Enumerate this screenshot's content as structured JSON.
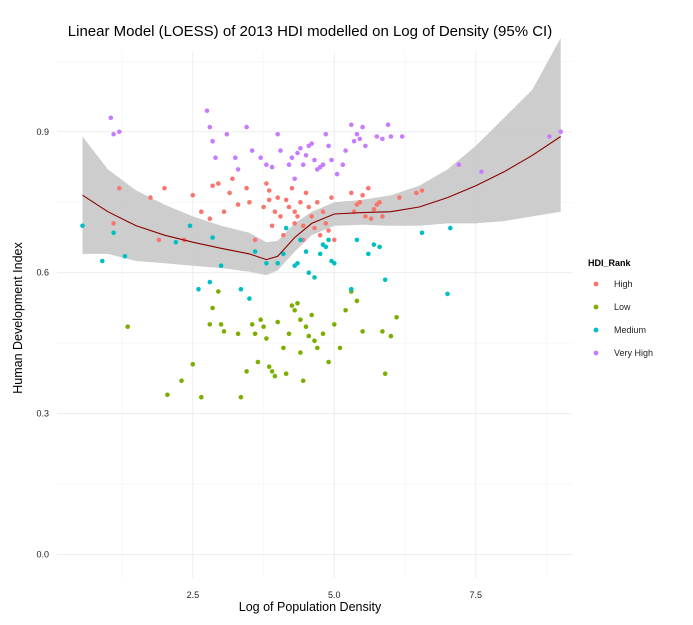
{
  "chart_data": {
    "type": "scatter",
    "title": "Linear Model (LOESS) of 2013 HDI modelled on Log of Density (95% CI)",
    "xlabel": "Log of Population Density",
    "ylabel": "Human Development Index",
    "xlim": [
      0.1,
      9.2
    ],
    "ylim": [
      -0.05,
      1.07
    ],
    "x_ticks": [
      2.5,
      5.0,
      7.5
    ],
    "y_ticks": [
      0.0,
      0.3,
      0.6,
      0.9
    ],
    "x_tick_labels": [
      "2.5",
      "5.0",
      "7.5"
    ],
    "y_tick_labels": [
      "0.0",
      "0.3",
      "0.6",
      "0.9"
    ],
    "grid": true,
    "legend": {
      "title": "HDI_Rank",
      "placement": "right"
    },
    "series": [
      {
        "name": "High",
        "color": "#F8766D",
        "points": [
          [
            1.2,
            0.78
          ],
          [
            1.1,
            0.705
          ],
          [
            1.75,
            0.76
          ],
          [
            1.9,
            0.67
          ],
          [
            2.0,
            0.78
          ],
          [
            2.35,
            0.67
          ],
          [
            2.5,
            0.765
          ],
          [
            2.65,
            0.73
          ],
          [
            2.8,
            0.715
          ],
          [
            2.85,
            0.785
          ],
          [
            2.95,
            0.79
          ],
          [
            3.05,
            0.73
          ],
          [
            3.15,
            0.77
          ],
          [
            3.2,
            0.8
          ],
          [
            3.3,
            0.745
          ],
          [
            3.45,
            0.78
          ],
          [
            3.5,
            0.75
          ],
          [
            3.6,
            0.67
          ],
          [
            3.75,
            0.74
          ],
          [
            3.8,
            0.79
          ],
          [
            3.85,
            0.775
          ],
          [
            3.85,
            0.755
          ],
          [
            3.9,
            0.7
          ],
          [
            3.95,
            0.73
          ],
          [
            4.0,
            0.76
          ],
          [
            4.05,
            0.72
          ],
          [
            4.1,
            0.68
          ],
          [
            4.15,
            0.755
          ],
          [
            4.2,
            0.74
          ],
          [
            4.25,
            0.78
          ],
          [
            4.3,
            0.73
          ],
          [
            4.3,
            0.705
          ],
          [
            4.35,
            0.72
          ],
          [
            4.4,
            0.75
          ],
          [
            4.45,
            0.7
          ],
          [
            4.45,
            0.67
          ],
          [
            4.5,
            0.77
          ],
          [
            4.55,
            0.74
          ],
          [
            4.6,
            0.72
          ],
          [
            4.65,
            0.695
          ],
          [
            4.7,
            0.75
          ],
          [
            4.75,
            0.68
          ],
          [
            4.8,
            0.73
          ],
          [
            4.85,
            0.705
          ],
          [
            4.9,
            0.69
          ],
          [
            4.95,
            0.76
          ],
          [
            5.0,
            0.67
          ],
          [
            5.3,
            0.77
          ],
          [
            5.35,
            0.73
          ],
          [
            5.4,
            0.745
          ],
          [
            5.45,
            0.75
          ],
          [
            5.5,
            0.765
          ],
          [
            5.55,
            0.72
          ],
          [
            5.6,
            0.78
          ],
          [
            5.65,
            0.715
          ],
          [
            5.7,
            0.735
          ],
          [
            5.75,
            0.745
          ],
          [
            5.8,
            0.75
          ],
          [
            5.85,
            0.72
          ],
          [
            6.15,
            0.76
          ],
          [
            6.45,
            0.77
          ],
          [
            6.55,
            0.775
          ]
        ]
      },
      {
        "name": "Low",
        "color": "#7CAE00",
        "points": [
          [
            1.35,
            0.485
          ],
          [
            2.05,
            0.34
          ],
          [
            2.3,
            0.37
          ],
          [
            2.5,
            0.405
          ],
          [
            2.65,
            0.335
          ],
          [
            2.8,
            0.49
          ],
          [
            2.85,
            0.525
          ],
          [
            2.95,
            0.56
          ],
          [
            3.0,
            0.49
          ],
          [
            3.05,
            0.475
          ],
          [
            3.3,
            0.47
          ],
          [
            3.35,
            0.335
          ],
          [
            3.45,
            0.39
          ],
          [
            3.55,
            0.49
          ],
          [
            3.6,
            0.47
          ],
          [
            3.65,
            0.41
          ],
          [
            3.7,
            0.5
          ],
          [
            3.75,
            0.485
          ],
          [
            3.8,
            0.46
          ],
          [
            3.85,
            0.4
          ],
          [
            3.9,
            0.39
          ],
          [
            3.95,
            0.38
          ],
          [
            4.0,
            0.495
          ],
          [
            4.1,
            0.44
          ],
          [
            4.15,
            0.385
          ],
          [
            4.2,
            0.47
          ],
          [
            4.25,
            0.53
          ],
          [
            4.3,
            0.52
          ],
          [
            4.35,
            0.535
          ],
          [
            4.4,
            0.5
          ],
          [
            4.4,
            0.43
          ],
          [
            4.45,
            0.37
          ],
          [
            4.5,
            0.485
          ],
          [
            4.55,
            0.465
          ],
          [
            4.6,
            0.51
          ],
          [
            4.65,
            0.455
          ],
          [
            4.7,
            0.44
          ],
          [
            4.8,
            0.47
          ],
          [
            4.9,
            0.41
          ],
          [
            5.0,
            0.49
          ],
          [
            5.1,
            0.44
          ],
          [
            5.2,
            0.52
          ],
          [
            5.3,
            0.56
          ],
          [
            5.4,
            0.54
          ],
          [
            5.5,
            0.475
          ],
          [
            5.85,
            0.475
          ],
          [
            5.9,
            0.385
          ],
          [
            6.0,
            0.465
          ],
          [
            6.1,
            0.505
          ]
        ]
      },
      {
        "name": "Medium",
        "color": "#00BFC4",
        "points": [
          [
            0.55,
            0.7
          ],
          [
            0.9,
            0.625
          ],
          [
            1.1,
            0.685
          ],
          [
            1.3,
            0.635
          ],
          [
            2.2,
            0.665
          ],
          [
            2.45,
            0.7
          ],
          [
            2.6,
            0.565
          ],
          [
            2.8,
            0.58
          ],
          [
            2.85,
            0.675
          ],
          [
            3.0,
            0.615
          ],
          [
            3.35,
            0.565
          ],
          [
            3.5,
            0.545
          ],
          [
            3.6,
            0.645
          ],
          [
            3.8,
            0.62
          ],
          [
            4.0,
            0.62
          ],
          [
            4.1,
            0.64
          ],
          [
            4.15,
            0.695
          ],
          [
            4.3,
            0.615
          ],
          [
            4.35,
            0.62
          ],
          [
            4.4,
            0.67
          ],
          [
            4.5,
            0.645
          ],
          [
            4.55,
            0.6
          ],
          [
            4.65,
            0.59
          ],
          [
            4.75,
            0.64
          ],
          [
            4.8,
            0.66
          ],
          [
            4.85,
            0.655
          ],
          [
            4.9,
            0.67
          ],
          [
            4.95,
            0.625
          ],
          [
            5.0,
            0.62
          ],
          [
            5.3,
            0.565
          ],
          [
            5.4,
            0.67
          ],
          [
            5.6,
            0.64
          ],
          [
            5.7,
            0.66
          ],
          [
            5.8,
            0.655
          ],
          [
            5.9,
            0.585
          ],
          [
            6.55,
            0.685
          ],
          [
            7.0,
            0.555
          ],
          [
            7.05,
            0.695
          ]
        ]
      },
      {
        "name": "Very High",
        "color": "#C77CFF",
        "points": [
          [
            1.05,
            0.93
          ],
          [
            1.1,
            0.895
          ],
          [
            1.2,
            0.9
          ],
          [
            2.75,
            0.945
          ],
          [
            2.8,
            0.91
          ],
          [
            2.85,
            0.88
          ],
          [
            2.9,
            0.845
          ],
          [
            3.1,
            0.895
          ],
          [
            3.25,
            0.845
          ],
          [
            3.3,
            0.82
          ],
          [
            3.45,
            0.91
          ],
          [
            3.55,
            0.86
          ],
          [
            3.7,
            0.845
          ],
          [
            3.8,
            0.83
          ],
          [
            3.9,
            0.825
          ],
          [
            4.0,
            0.895
          ],
          [
            4.05,
            0.86
          ],
          [
            4.2,
            0.83
          ],
          [
            4.25,
            0.845
          ],
          [
            4.3,
            0.8
          ],
          [
            4.35,
            0.855
          ],
          [
            4.4,
            0.865
          ],
          [
            4.45,
            0.83
          ],
          [
            4.5,
            0.85
          ],
          [
            4.55,
            0.87
          ],
          [
            4.6,
            0.875
          ],
          [
            4.65,
            0.84
          ],
          [
            4.7,
            0.82
          ],
          [
            4.75,
            0.825
          ],
          [
            4.8,
            0.83
          ],
          [
            4.85,
            0.895
          ],
          [
            4.9,
            0.87
          ],
          [
            4.95,
            0.84
          ],
          [
            5.05,
            0.81
          ],
          [
            5.15,
            0.83
          ],
          [
            5.2,
            0.86
          ],
          [
            5.3,
            0.915
          ],
          [
            5.35,
            0.88
          ],
          [
            5.4,
            0.895
          ],
          [
            5.45,
            0.885
          ],
          [
            5.5,
            0.91
          ],
          [
            5.55,
            0.87
          ],
          [
            5.75,
            0.89
          ],
          [
            5.85,
            0.885
          ],
          [
            5.95,
            0.915
          ],
          [
            6.0,
            0.89
          ],
          [
            6.2,
            0.89
          ],
          [
            7.2,
            0.83
          ],
          [
            7.6,
            0.815
          ],
          [
            8.8,
            0.89
          ],
          [
            9.0,
            0.9
          ]
        ]
      }
    ],
    "loess": {
      "color": "#8B0000",
      "band_color": "#c8c8c8",
      "x": [
        0.55,
        1.0,
        1.5,
        2.0,
        2.5,
        3.0,
        3.5,
        3.8,
        4.0,
        4.3,
        4.6,
        5.0,
        5.5,
        6.0,
        6.5,
        7.0,
        7.5,
        8.0,
        8.5,
        9.0
      ],
      "fit": [
        0.765,
        0.73,
        0.7,
        0.68,
        0.665,
        0.652,
        0.64,
        0.628,
        0.635,
        0.675,
        0.705,
        0.725,
        0.728,
        0.73,
        0.74,
        0.76,
        0.785,
        0.815,
        0.85,
        0.89
      ],
      "lower": [
        0.64,
        0.64,
        0.625,
        0.62,
        0.615,
        0.61,
        0.602,
        0.595,
        0.605,
        0.645,
        0.68,
        0.7,
        0.702,
        0.7,
        0.7,
        0.705,
        0.705,
        0.71,
        0.72,
        0.73
      ],
      "upper": [
        0.89,
        0.82,
        0.775,
        0.745,
        0.72,
        0.7,
        0.685,
        0.665,
        0.668,
        0.705,
        0.73,
        0.75,
        0.755,
        0.765,
        0.785,
        0.82,
        0.87,
        0.93,
        0.99,
        1.1
      ]
    }
  }
}
